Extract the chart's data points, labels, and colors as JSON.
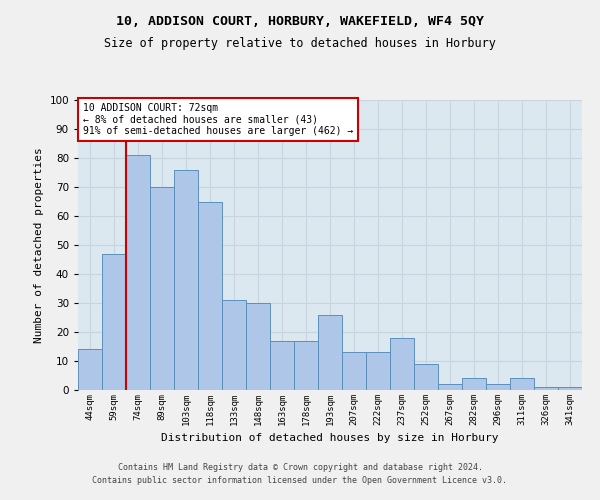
{
  "title1": "10, ADDISON COURT, HORBURY, WAKEFIELD, WF4 5QY",
  "title2": "Size of property relative to detached houses in Horbury",
  "xlabel": "Distribution of detached houses by size in Horbury",
  "ylabel": "Number of detached properties",
  "categories": [
    "44sqm",
    "59sqm",
    "74sqm",
    "89sqm",
    "103sqm",
    "118sqm",
    "133sqm",
    "148sqm",
    "163sqm",
    "178sqm",
    "193sqm",
    "207sqm",
    "222sqm",
    "237sqm",
    "252sqm",
    "267sqm",
    "282sqm",
    "296sqm",
    "311sqm",
    "326sqm",
    "341sqm"
  ],
  "values": [
    14,
    47,
    81,
    70,
    76,
    65,
    31,
    30,
    17,
    17,
    26,
    13,
    13,
    18,
    9,
    2,
    4,
    2,
    4,
    1,
    1
  ],
  "bar_color": "#aec6e8",
  "bar_edge_color": "#5b8fbd",
  "annotation_line1": "10 ADDISON COURT: 72sqm",
  "annotation_line2": "← 8% of detached houses are smaller (43)",
  "annotation_line3": "91% of semi-detached houses are larger (462) →",
  "annotation_box_color": "#ffffff",
  "annotation_box_edge_color": "#cc0000",
  "vline_color": "#cc0000",
  "vline_x_index": 2,
  "ylim": [
    0,
    100
  ],
  "yticks": [
    0,
    10,
    20,
    30,
    40,
    50,
    60,
    70,
    80,
    90,
    100
  ],
  "grid_color": "#c8d4e0",
  "background_color": "#dce8f0",
  "fig_background_color": "#f0f0f0",
  "footer1": "Contains HM Land Registry data © Crown copyright and database right 2024.",
  "footer2": "Contains public sector information licensed under the Open Government Licence v3.0."
}
